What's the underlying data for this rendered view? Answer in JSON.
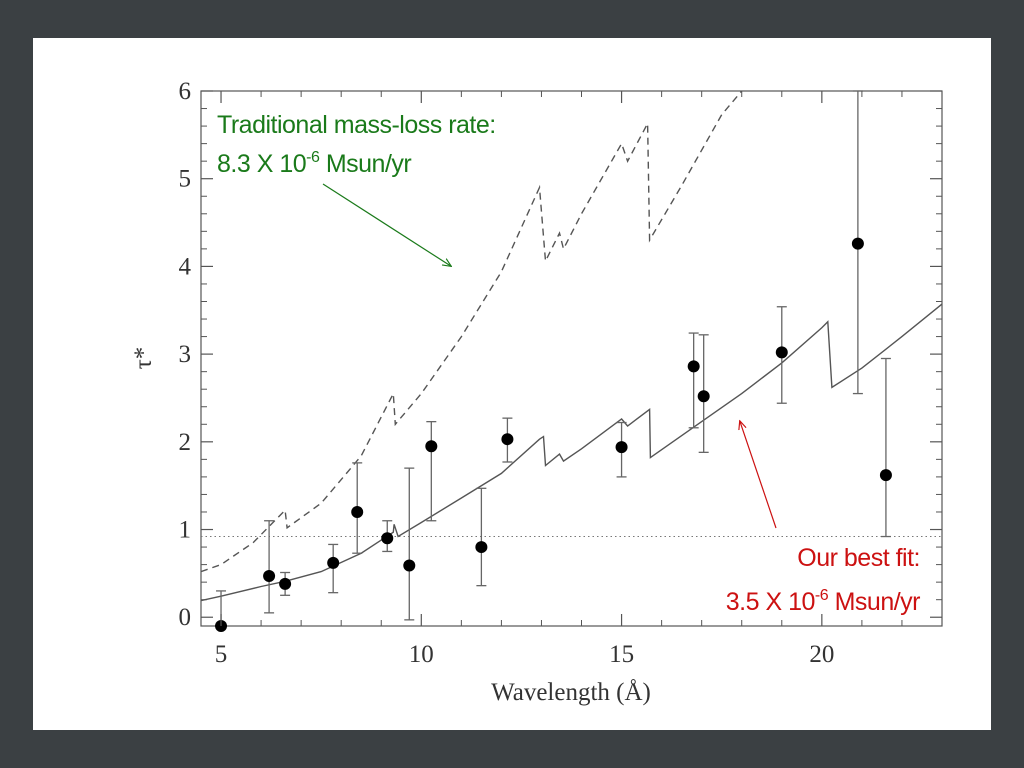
{
  "chart_data": {
    "type": "scatter",
    "xlabel": "Wavelength (Å)",
    "ylabel": "τ*",
    "xlim": [
      4.5,
      23
    ],
    "ylim": [
      -0.1,
      6
    ],
    "x_ticks": [
      5,
      10,
      15,
      20
    ],
    "y_ticks": [
      0,
      1,
      2,
      3,
      4,
      5,
      6
    ],
    "x_tick_labels": [
      "5",
      "10",
      "15",
      "20"
    ],
    "y_tick_labels": [
      "0",
      "1",
      "2",
      "3",
      "4",
      "5",
      "6"
    ],
    "grid": false,
    "reference_line": {
      "y": 0.92,
      "style": "dotted"
    },
    "series": [
      {
        "kind": "points-with-error-bars",
        "points": [
          {
            "x": 5.0,
            "y": -0.1,
            "lo": -0.1,
            "hi": 0.3
          },
          {
            "x": 6.2,
            "y": 0.47,
            "lo": 0.05,
            "hi": 1.1
          },
          {
            "x": 6.6,
            "y": 0.38,
            "lo": 0.25,
            "hi": 0.51
          },
          {
            "x": 7.8,
            "y": 0.62,
            "lo": 0.28,
            "hi": 0.83
          },
          {
            "x": 8.4,
            "y": 1.2,
            "lo": 0.73,
            "hi": 1.76
          },
          {
            "x": 9.15,
            "y": 0.9,
            "lo": 0.75,
            "hi": 1.1
          },
          {
            "x": 9.7,
            "y": 0.59,
            "lo": -0.03,
            "hi": 1.7
          },
          {
            "x": 10.25,
            "y": 1.95,
            "lo": 1.1,
            "hi": 2.23
          },
          {
            "x": 11.5,
            "y": 0.8,
            "lo": 0.36,
            "hi": 1.47
          },
          {
            "x": 12.15,
            "y": 2.03,
            "lo": 1.77,
            "hi": 2.27
          },
          {
            "x": 15.0,
            "y": 1.94,
            "lo": 1.6,
            "hi": 2.22
          },
          {
            "x": 16.8,
            "y": 2.86,
            "lo": 2.16,
            "hi": 3.24
          },
          {
            "x": 17.05,
            "y": 2.52,
            "lo": 1.88,
            "hi": 3.22
          },
          {
            "x": 19.0,
            "y": 3.02,
            "lo": 2.44,
            "hi": 3.54
          },
          {
            "x": 20.9,
            "y": 4.26,
            "lo": 2.55,
            "hi": 6.0
          },
          {
            "x": 21.6,
            "y": 1.62,
            "lo": 0.92,
            "hi": 2.95
          }
        ]
      },
      {
        "kind": "model-line",
        "style": "solid",
        "color": "#555555",
        "points": [
          [
            4.5,
            0.19
          ],
          [
            5.0,
            0.24
          ],
          [
            6.0,
            0.35
          ],
          [
            6.6,
            0.41
          ],
          [
            7.5,
            0.52
          ],
          [
            8.5,
            0.73
          ],
          [
            9.3,
            0.97
          ],
          [
            9.32,
            1.06
          ],
          [
            9.42,
            0.92
          ],
          [
            10.0,
            1.08
          ],
          [
            11.0,
            1.36
          ],
          [
            12.0,
            1.64
          ],
          [
            12.95,
            2.03
          ],
          [
            13.05,
            2.06
          ],
          [
            13.1,
            1.73
          ],
          [
            13.45,
            1.86
          ],
          [
            13.55,
            1.78
          ],
          [
            14.0,
            1.92
          ],
          [
            15.0,
            2.26
          ],
          [
            15.15,
            2.18
          ],
          [
            15.7,
            2.37
          ],
          [
            15.72,
            1.82
          ],
          [
            17.0,
            2.23
          ],
          [
            18.0,
            2.55
          ],
          [
            19.0,
            2.9
          ],
          [
            20.0,
            3.3
          ],
          [
            20.15,
            3.37
          ],
          [
            20.25,
            2.62
          ],
          [
            21.0,
            2.84
          ],
          [
            22.0,
            3.2
          ],
          [
            23.0,
            3.57
          ]
        ]
      },
      {
        "kind": "model-line",
        "style": "dashed",
        "color": "#555555",
        "points": [
          [
            4.5,
            0.52
          ],
          [
            5.0,
            0.6
          ],
          [
            5.8,
            0.85
          ],
          [
            6.6,
            1.22
          ],
          [
            6.65,
            1.02
          ],
          [
            7.5,
            1.3
          ],
          [
            8.5,
            1.84
          ],
          [
            9.3,
            2.55
          ],
          [
            9.35,
            2.2
          ],
          [
            10.0,
            2.55
          ],
          [
            11.0,
            3.2
          ],
          [
            12.0,
            3.94
          ],
          [
            12.95,
            4.9
          ],
          [
            13.1,
            4.06
          ],
          [
            13.45,
            4.38
          ],
          [
            13.55,
            4.2
          ],
          [
            14.0,
            4.6
          ],
          [
            15.0,
            5.4
          ],
          [
            15.15,
            5.2
          ],
          [
            15.65,
            5.63
          ],
          [
            15.7,
            4.3
          ],
          [
            16.5,
            4.92
          ],
          [
            17.5,
            5.73
          ],
          [
            18.0,
            6.0
          ]
        ]
      }
    ]
  },
  "annotations": {
    "traditional_line1": "Traditional mass-loss rate:",
    "traditional_line2_prefix": "8.3 X 10",
    "traditional_exp": "-6",
    "traditional_line2_suffix": " Msun/yr",
    "bestfit_line1": "Our best fit:",
    "bestfit_line2_prefix": "3.5 X 10",
    "bestfit_exp": "-6",
    "bestfit_line2_suffix": " Msun/yr",
    "traditional_color": "#1a7a1a",
    "bestfit_color": "#cc1111",
    "traditional_arrow_tip": {
      "x": 10.75,
      "y": 4.0
    },
    "bestfit_arrow_tip": {
      "x": 17.95,
      "y": 2.24
    }
  }
}
